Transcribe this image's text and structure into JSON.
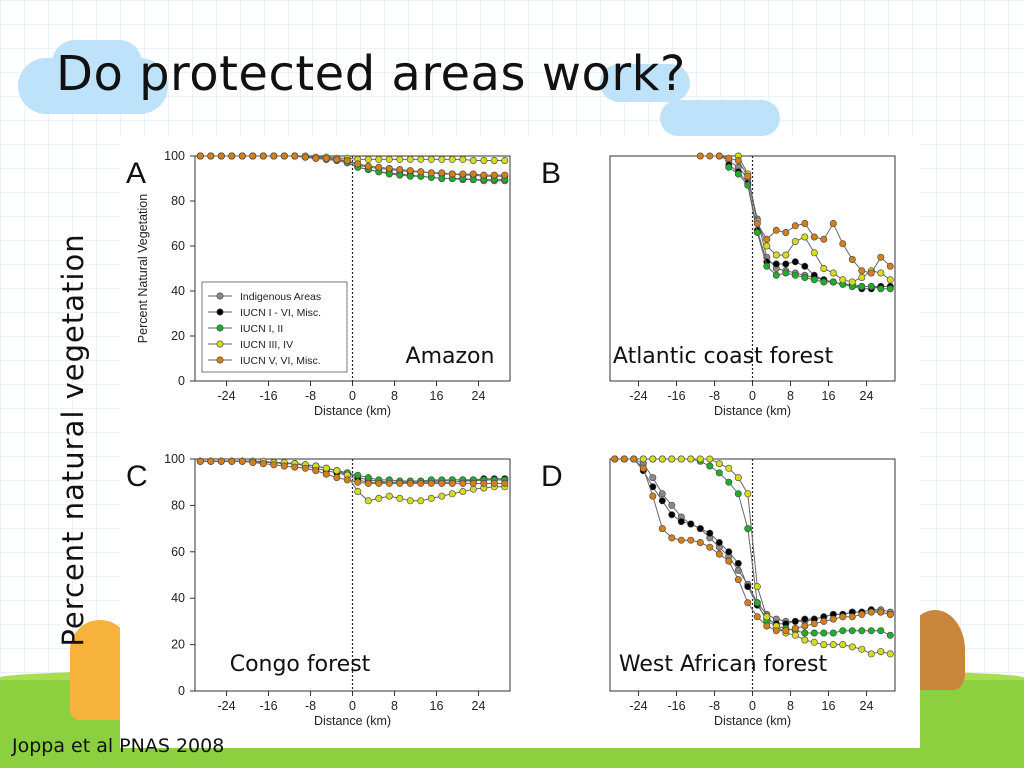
{
  "slide": {
    "title": "Do protected areas work?",
    "y_axis_label": "Percent natural vegetation",
    "citation": "Joppa et al PNAS 2008"
  },
  "colors": {
    "Indigenous Areas": "#8a8a8a",
    "IUCN I - VI, Misc.": "#000000",
    "IUCN I, II": "#1fae2b",
    "IUCN III, IV": "#d4dc20",
    "IUCN V, VI, Misc.": "#d47f1c"
  },
  "chart_data": [
    {
      "type": "line",
      "panel_letter": "A",
      "region_label": "Amazon",
      "xlabel": "Distance (km)",
      "ylabel": "Percent Natural Vegetation",
      "xlim": [
        -30,
        30
      ],
      "ylim": [
        0,
        100
      ],
      "xticks": [
        -24,
        -16,
        -8,
        0,
        8,
        16,
        24
      ],
      "yticks": [
        0,
        20,
        40,
        60,
        80,
        100
      ],
      "legend": {
        "position": "bottom-left",
        "entries": [
          "Indigenous Areas",
          "IUCN I - VI, Misc.",
          "IUCN I, II",
          "IUCN III, IV",
          "IUCN V, VI, Misc."
        ]
      },
      "x": [
        -29,
        -27,
        -25,
        -23,
        -21,
        -19,
        -17,
        -15,
        -13,
        -11,
        -9,
        -7,
        -5,
        -3,
        -1,
        1,
        3,
        5,
        7,
        9,
        11,
        13,
        15,
        17,
        19,
        21,
        23,
        25,
        27,
        29
      ],
      "series": [
        {
          "name": "Indigenous Areas",
          "values": [
            100,
            100,
            100,
            100,
            100,
            100,
            100,
            100,
            100,
            100,
            99.5,
            99,
            98.5,
            98,
            97,
            95,
            94,
            93,
            92.5,
            92,
            91.5,
            91,
            90.5,
            90,
            90,
            89.5,
            89.5,
            89,
            89,
            89
          ]
        },
        {
          "name": "IUCN I - VI, Misc.",
          "values": [
            100,
            100,
            100,
            100,
            100,
            100,
            100,
            100,
            100,
            100,
            99.5,
            99,
            99,
            98.5,
            97.5,
            96,
            95,
            94.5,
            94,
            93.5,
            93,
            93,
            92.5,
            92,
            92,
            91.5,
            91.5,
            91,
            91,
            91
          ]
        },
        {
          "name": "IUCN I, II",
          "values": [
            100,
            100,
            100,
            100,
            100,
            100,
            100,
            100,
            100,
            100,
            99.5,
            99,
            98.5,
            98,
            97,
            95,
            94,
            93,
            92,
            91.5,
            91,
            91,
            90.5,
            90,
            90,
            90,
            89.5,
            89.5,
            89.5,
            89.5
          ]
        },
        {
          "name": "IUCN III, IV",
          "values": [
            100,
            100,
            100,
            100,
            100,
            100,
            100,
            100,
            100,
            100,
            100,
            99.5,
            99.5,
            99,
            99,
            98.5,
            98.5,
            98.5,
            98.5,
            98.5,
            98.5,
            98.5,
            98.5,
            98.5,
            98.5,
            98.5,
            98,
            98,
            98,
            98
          ]
        },
        {
          "name": "IUCN V, VI, Misc.",
          "values": [
            100,
            100,
            100,
            100,
            100,
            100,
            100,
            100,
            100,
            100,
            99.5,
            99,
            99,
            98.5,
            98,
            96.5,
            95.5,
            95,
            94.5,
            94,
            93.5,
            93,
            92.5,
            92.5,
            92,
            92,
            92,
            91.5,
            91.5,
            91.5
          ]
        }
      ]
    },
    {
      "type": "line",
      "panel_letter": "B",
      "region_label": "Atlantic coast forest",
      "xlabel": "Distance (km)",
      "ylabel": "",
      "xlim": [
        -30,
        30
      ],
      "ylim": [
        0,
        100
      ],
      "xticks": [
        -24,
        -16,
        -8,
        0,
        8,
        16,
        24
      ],
      "yticks": [],
      "x": [
        -11,
        -9,
        -7,
        -5,
        -3,
        -1,
        1,
        3,
        5,
        7,
        9,
        11,
        13,
        15,
        17,
        19,
        21,
        23,
        25,
        27,
        29
      ],
      "series": [
        {
          "name": "Indigenous Areas",
          "values": [
            null,
            null,
            100,
            98,
            95,
            90,
            72,
            55,
            50,
            49,
            48,
            47,
            46,
            45,
            44,
            43,
            43,
            42,
            42,
            42,
            42
          ]
        },
        {
          "name": "IUCN I - VI, Misc.",
          "values": [
            null,
            null,
            null,
            96,
            93,
            88,
            67,
            53,
            52,
            52,
            53,
            51,
            47,
            45,
            44,
            43,
            42,
            41,
            41,
            42,
            42
          ]
        },
        {
          "name": "IUCN I, II",
          "values": [
            null,
            null,
            null,
            95,
            92,
            87,
            66,
            51,
            47,
            48,
            47,
            46,
            45,
            44,
            44,
            43,
            42,
            42,
            42,
            41,
            41
          ]
        },
        {
          "name": "IUCN III, IV",
          "values": [
            null,
            null,
            null,
            null,
            100,
            92,
            71,
            60,
            56,
            56,
            62,
            64,
            57,
            50,
            48,
            45,
            44,
            46,
            49,
            48,
            45
          ]
        },
        {
          "name": "IUCN V, VI, Misc.",
          "values": [
            100,
            100,
            100,
            99,
            98,
            91,
            70,
            63,
            67,
            66,
            69,
            70,
            64,
            63,
            70,
            61,
            54,
            49,
            48,
            55,
            51
          ]
        }
      ]
    },
    {
      "type": "line",
      "panel_letter": "C",
      "region_label": "Congo forest",
      "xlabel": "Distance (km)",
      "ylabel": "",
      "xlim": [
        -30,
        30
      ],
      "ylim": [
        0,
        100
      ],
      "xticks": [
        -24,
        -16,
        -8,
        0,
        8,
        16,
        24
      ],
      "yticks": [
        0,
        20,
        40,
        60,
        80,
        100
      ],
      "x": [
        -29,
        -27,
        -25,
        -23,
        -21,
        -19,
        -17,
        -15,
        -13,
        -11,
        -9,
        -7,
        -5,
        -3,
        -1,
        1,
        3,
        5,
        7,
        9,
        11,
        13,
        15,
        17,
        19,
        21,
        23,
        25,
        27,
        29
      ],
      "series": [
        {
          "name": "Indigenous Areas",
          "values": [
            99,
            99,
            99,
            99,
            99,
            99,
            98.5,
            98.5,
            98,
            98,
            97.5,
            97,
            96,
            95,
            94,
            92,
            91,
            90.5,
            90,
            90,
            90,
            90,
            90,
            90,
            90,
            90.5,
            90.5,
            91,
            91,
            91
          ]
        },
        {
          "name": "IUCN I - VI, Misc.",
          "values": [
            99,
            99,
            99,
            99,
            99,
            99,
            98.5,
            98.5,
            98,
            98,
            97,
            96,
            95,
            94,
            93,
            91,
            90,
            90,
            90,
            90,
            90,
            90,
            90.5,
            90.5,
            91,
            91,
            91,
            91.5,
            91.5,
            91.5
          ]
        },
        {
          "name": "IUCN I, II",
          "values": [
            99,
            99,
            99,
            99,
            99,
            99,
            98.5,
            98.5,
            98,
            98,
            97.5,
            97,
            96,
            95,
            94,
            93,
            92,
            91,
            91,
            90.5,
            90.5,
            90.5,
            91,
            91,
            91,
            91,
            91,
            91,
            91,
            91
          ]
        },
        {
          "name": "IUCN III, IV",
          "values": [
            99,
            99,
            99,
            99,
            99,
            99,
            99,
            98.5,
            98.5,
            98,
            97.5,
            97,
            96,
            95,
            93,
            86,
            82,
            83,
            84,
            83,
            82,
            82,
            83,
            84,
            85,
            86,
            87,
            87.5,
            88,
            88
          ]
        },
        {
          "name": "IUCN V, VI, Misc.",
          "values": [
            99,
            99,
            99,
            99,
            99,
            98.5,
            98,
            97.5,
            97,
            96.5,
            96,
            95,
            93.5,
            92,
            91,
            90,
            89.5,
            89.5,
            89.5,
            89.5,
            89.5,
            89.5,
            89.5,
            89.5,
            89.5,
            89.5,
            89.5,
            89.5,
            89.5,
            89.5
          ]
        }
      ]
    },
    {
      "type": "line",
      "panel_letter": "D",
      "region_label": "West African forest",
      "xlabel": "Distance (km)",
      "ylabel": "",
      "xlim": [
        -30,
        30
      ],
      "ylim": [
        0,
        100
      ],
      "xticks": [
        -24,
        -16,
        -8,
        0,
        8,
        16,
        24
      ],
      "yticks": [],
      "x": [
        -29,
        -27,
        -25,
        -23,
        -21,
        -19,
        -17,
        -15,
        -13,
        -11,
        -9,
        -7,
        -5,
        -3,
        -1,
        1,
        3,
        5,
        7,
        9,
        11,
        13,
        15,
        17,
        19,
        21,
        23,
        25,
        27,
        29
      ],
      "series": [
        {
          "name": "Indigenous Areas",
          "values": [
            100,
            100,
            100,
            98,
            92,
            85,
            80,
            75,
            72,
            70,
            66,
            62,
            58,
            52,
            46,
            38,
            33,
            31,
            30,
            30,
            30,
            31,
            32,
            33,
            33,
            34,
            34,
            35,
            35,
            34
          ]
        },
        {
          "name": "IUCN I - VI, Misc.",
          "values": [
            100,
            100,
            100,
            95,
            88,
            82,
            76,
            73,
            72,
            70,
            68,
            64,
            60,
            55,
            45,
            37,
            31,
            29,
            29,
            30,
            31,
            31,
            32,
            33,
            33,
            34,
            34,
            35,
            34,
            33
          ]
        },
        {
          "name": "IUCN I, II",
          "values": [
            100,
            100,
            100,
            100,
            100,
            100,
            100,
            100,
            100,
            99,
            97,
            94,
            90,
            85,
            70,
            38,
            30,
            28,
            27,
            26,
            25,
            25,
            25,
            25,
            26,
            26,
            26,
            26,
            26,
            24
          ]
        },
        {
          "name": "IUCN III, IV",
          "values": [
            100,
            100,
            100,
            100,
            100,
            100,
            100,
            100,
            100,
            100,
            100,
            98,
            96,
            92,
            85,
            45,
            32,
            28,
            25,
            24,
            22,
            21,
            20,
            20,
            20,
            19,
            18,
            16,
            17,
            16
          ]
        },
        {
          "name": "IUCN V, VI, Misc.",
          "values": [
            100,
            100,
            100,
            96,
            84,
            70,
            66,
            65,
            65,
            64,
            62,
            59,
            56,
            48,
            38,
            32,
            28,
            26,
            26,
            27,
            28,
            29,
            30,
            31,
            32,
            32,
            33,
            34,
            34,
            33
          ]
        }
      ]
    }
  ]
}
